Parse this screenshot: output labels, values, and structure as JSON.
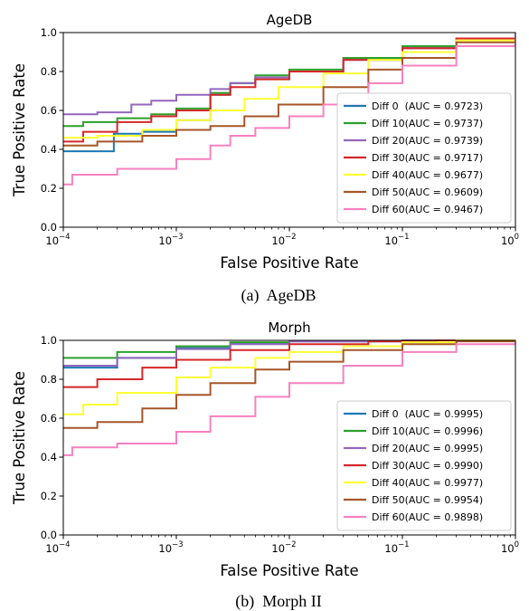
{
  "chart_data": [
    {
      "type": "line",
      "title": "AgeDB",
      "xlabel": "False Positive Rate",
      "ylabel": "True Positive Rate",
      "xscale": "log",
      "xlim": [
        0.0001,
        1
      ],
      "ylim": [
        0.0,
        1.0
      ],
      "xticks": [
        {
          "value": 0.0001,
          "base": "10",
          "exp": "−4"
        },
        {
          "value": 0.001,
          "base": "10",
          "exp": "−3"
        },
        {
          "value": 0.01,
          "base": "10",
          "exp": "−2"
        },
        {
          "value": 0.1,
          "base": "10",
          "exp": "−1"
        },
        {
          "value": 1,
          "base": "10",
          "exp": "0"
        }
      ],
      "yticks": [
        "0.0",
        "0.2",
        "0.4",
        "0.6",
        "0.8",
        "1.0"
      ],
      "legend_position": "lower-right",
      "caption": "(a)  AgeDB",
      "series": [
        {
          "name": "Diff 0  (AUC = 0.9723)",
          "color": "#1f77b4",
          "points": [
            [
              0.0001,
              0.39
            ],
            [
              0.00028,
              0.39
            ],
            [
              0.00028,
              0.48
            ],
            [
              0.0005,
              0.49
            ],
            [
              0.001,
              0.55
            ],
            [
              0.002,
              0.68
            ],
            [
              0.003,
              0.74
            ],
            [
              0.005,
              0.77
            ],
            [
              0.01,
              0.8
            ],
            [
              0.03,
              0.86
            ],
            [
              0.1,
              0.92
            ],
            [
              0.3,
              0.97
            ],
            [
              1,
              1.0
            ]
          ]
        },
        {
          "name": "Diff 10(AUC = 0.9737)",
          "color": "#2ca02c",
          "points": [
            [
              0.0001,
              0.52
            ],
            [
              0.00015,
              0.54
            ],
            [
              0.0003,
              0.56
            ],
            [
              0.0006,
              0.58
            ],
            [
              0.001,
              0.61
            ],
            [
              0.002,
              0.69
            ],
            [
              0.003,
              0.74
            ],
            [
              0.005,
              0.78
            ],
            [
              0.01,
              0.81
            ],
            [
              0.03,
              0.87
            ],
            [
              0.1,
              0.93
            ],
            [
              0.3,
              0.97
            ],
            [
              1,
              1.0
            ]
          ]
        },
        {
          "name": "Diff 20(AUC = 0.9739)",
          "color": "#9467bd",
          "points": [
            [
              0.0001,
              0.58
            ],
            [
              0.0002,
              0.59
            ],
            [
              0.0004,
              0.63
            ],
            [
              0.0006,
              0.65
            ],
            [
              0.001,
              0.68
            ],
            [
              0.002,
              0.71
            ],
            [
              0.003,
              0.74
            ],
            [
              0.005,
              0.77
            ],
            [
              0.01,
              0.8
            ],
            [
              0.03,
              0.86
            ],
            [
              0.1,
              0.92
            ],
            [
              0.3,
              0.97
            ],
            [
              1,
              1.0
            ]
          ]
        },
        {
          "name": "Diff 30(AUC = 0.9717)",
          "color": "#d62728",
          "points": [
            [
              0.0001,
              0.44
            ],
            [
              0.00015,
              0.49
            ],
            [
              0.0003,
              0.54
            ],
            [
              0.0006,
              0.57
            ],
            [
              0.001,
              0.6
            ],
            [
              0.002,
              0.68
            ],
            [
              0.003,
              0.72
            ],
            [
              0.005,
              0.76
            ],
            [
              0.01,
              0.8
            ],
            [
              0.03,
              0.86
            ],
            [
              0.1,
              0.92
            ],
            [
              0.3,
              0.97
            ],
            [
              1,
              1.0
            ]
          ]
        },
        {
          "name": "Diff 40(AUC = 0.9677)",
          "color": "#ffff33",
          "points": [
            [
              0.0001,
              0.46
            ],
            [
              0.0002,
              0.47
            ],
            [
              0.0005,
              0.5
            ],
            [
              0.001,
              0.55
            ],
            [
              0.002,
              0.6
            ],
            [
              0.004,
              0.66
            ],
            [
              0.008,
              0.72
            ],
            [
              0.02,
              0.79
            ],
            [
              0.05,
              0.86
            ],
            [
              0.1,
              0.9
            ],
            [
              0.3,
              0.96
            ],
            [
              1,
              1.0
            ]
          ]
        },
        {
          "name": "Diff 50(AUC = 0.9609)",
          "color": "#a65628",
          "points": [
            [
              0.0001,
              0.42
            ],
            [
              0.0002,
              0.44
            ],
            [
              0.0005,
              0.47
            ],
            [
              0.001,
              0.5
            ],
            [
              0.002,
              0.52
            ],
            [
              0.004,
              0.57
            ],
            [
              0.008,
              0.63
            ],
            [
              0.02,
              0.72
            ],
            [
              0.05,
              0.81
            ],
            [
              0.1,
              0.87
            ],
            [
              0.3,
              0.95
            ],
            [
              1,
              1.0
            ]
          ]
        },
        {
          "name": "Diff 60(AUC = 0.9467)",
          "color": "#f781bf",
          "points": [
            [
              0.0001,
              0.22
            ],
            [
              0.00012,
              0.27
            ],
            [
              0.0003,
              0.3
            ],
            [
              0.001,
              0.35
            ],
            [
              0.002,
              0.42
            ],
            [
              0.003,
              0.47
            ],
            [
              0.005,
              0.51
            ],
            [
              0.01,
              0.57
            ],
            [
              0.02,
              0.63
            ],
            [
              0.05,
              0.74
            ],
            [
              0.1,
              0.83
            ],
            [
              0.3,
              0.93
            ],
            [
              1,
              1.0
            ]
          ]
        }
      ]
    },
    {
      "type": "line",
      "title": "Morph",
      "xlabel": "False Positive Rate",
      "ylabel": "True Positive Rate",
      "xscale": "log",
      "xlim": [
        0.0001,
        1
      ],
      "ylim": [
        0.0,
        1.0
      ],
      "xticks": [
        {
          "value": 0.0001,
          "base": "10",
          "exp": "−4"
        },
        {
          "value": 0.001,
          "base": "10",
          "exp": "−3"
        },
        {
          "value": 0.01,
          "base": "10",
          "exp": "−2"
        },
        {
          "value": 0.1,
          "base": "10",
          "exp": "−1"
        },
        {
          "value": 1,
          "base": "10",
          "exp": "0"
        }
      ],
      "yticks": [
        "0.0",
        "0.2",
        "0.4",
        "0.6",
        "0.8",
        "1.0"
      ],
      "legend_position": "lower-right",
      "caption": "(b)  Morph II",
      "series": [
        {
          "name": "Diff 0  (AUC = 0.9995)",
          "color": "#1f77b4",
          "points": [
            [
              0.0001,
              0.86
            ],
            [
              0.0003,
              0.91
            ],
            [
              0.001,
              0.96
            ],
            [
              0.003,
              0.985
            ],
            [
              0.01,
              0.995
            ],
            [
              0.1,
              1.0
            ],
            [
              1,
              1.0
            ]
          ]
        },
        {
          "name": "Diff 10(AUC = 0.9996)",
          "color": "#2ca02c",
          "points": [
            [
              0.0001,
              0.91
            ],
            [
              0.0003,
              0.94
            ],
            [
              0.001,
              0.97
            ],
            [
              0.003,
              0.99
            ],
            [
              0.01,
              0.997
            ],
            [
              0.1,
              1.0
            ],
            [
              1,
              1.0
            ]
          ]
        },
        {
          "name": "Diff 20(AUC = 0.9995)",
          "color": "#9467bd",
          "points": [
            [
              0.0001,
              0.87
            ],
            [
              0.0003,
              0.91
            ],
            [
              0.001,
              0.955
            ],
            [
              0.003,
              0.98
            ],
            [
              0.01,
              0.994
            ],
            [
              0.1,
              1.0
            ],
            [
              1,
              1.0
            ]
          ]
        },
        {
          "name": "Diff 30(AUC = 0.9990)",
          "color": "#d62728",
          "points": [
            [
              0.0001,
              0.76
            ],
            [
              0.0002,
              0.8
            ],
            [
              0.0005,
              0.86
            ],
            [
              0.001,
              0.9
            ],
            [
              0.003,
              0.95
            ],
            [
              0.01,
              0.98
            ],
            [
              0.05,
              0.995
            ],
            [
              0.2,
              1.0
            ],
            [
              1,
              1.0
            ]
          ]
        },
        {
          "name": "Diff 40(AUC = 0.9977)",
          "color": "#ffff33",
          "points": [
            [
              0.0001,
              0.62
            ],
            [
              0.00015,
              0.67
            ],
            [
              0.0003,
              0.73
            ],
            [
              0.001,
              0.81
            ],
            [
              0.002,
              0.86
            ],
            [
              0.005,
              0.91
            ],
            [
              0.01,
              0.94
            ],
            [
              0.03,
              0.97
            ],
            [
              0.1,
              0.99
            ],
            [
              0.3,
              1.0
            ],
            [
              1,
              1.0
            ]
          ]
        },
        {
          "name": "Diff 50(AUC = 0.9954)",
          "color": "#a65628",
          "points": [
            [
              0.0001,
              0.55
            ],
            [
              0.0002,
              0.58
            ],
            [
              0.0005,
              0.65
            ],
            [
              0.001,
              0.72
            ],
            [
              0.002,
              0.78
            ],
            [
              0.005,
              0.85
            ],
            [
              0.01,
              0.89
            ],
            [
              0.03,
              0.95
            ],
            [
              0.1,
              0.98
            ],
            [
              0.3,
              0.995
            ],
            [
              1,
              1.0
            ]
          ]
        },
        {
          "name": "Diff 60(AUC = 0.9898)",
          "color": "#f781bf",
          "points": [
            [
              0.0001,
              0.41
            ],
            [
              0.00012,
              0.45
            ],
            [
              0.0003,
              0.47
            ],
            [
              0.001,
              0.53
            ],
            [
              0.002,
              0.61
            ],
            [
              0.005,
              0.71
            ],
            [
              0.01,
              0.78
            ],
            [
              0.03,
              0.87
            ],
            [
              0.1,
              0.94
            ],
            [
              0.3,
              0.98
            ],
            [
              1,
              1.0
            ]
          ]
        }
      ]
    }
  ]
}
